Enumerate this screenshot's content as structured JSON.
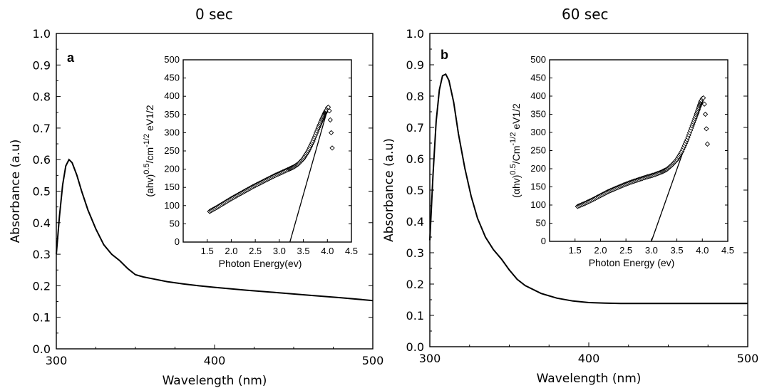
{
  "panels": [
    {
      "title": "0 sec",
      "letter": "a"
    },
    {
      "title": "60 sec",
      "letter": "b"
    }
  ],
  "chart_data": [
    {
      "type": "line",
      "panel": "a",
      "title": "0 sec",
      "xlabel": "Wavelength (nm)",
      "ylabel": "Absorbance (a.u)",
      "xlim": [
        300,
        500
      ],
      "ylim": [
        0.0,
        1.0
      ],
      "xticks": [
        300,
        400,
        500
      ],
      "yticks": [
        "0.0",
        "0.1",
        "0.2",
        "0.3",
        "0.4",
        "0.5",
        "0.6",
        "0.7",
        "0.8",
        "0.9",
        "1.0"
      ],
      "series": [
        {
          "x": [
            300,
            302,
            304,
            306,
            308,
            310,
            313,
            316,
            320,
            325,
            330,
            335,
            340,
            345,
            350,
            355,
            360,
            370,
            380,
            390,
            400,
            420,
            440,
            460,
            480,
            500
          ],
          "y": [
            0.3,
            0.42,
            0.52,
            0.58,
            0.6,
            0.59,
            0.55,
            0.5,
            0.44,
            0.38,
            0.33,
            0.3,
            0.28,
            0.255,
            0.235,
            0.228,
            0.223,
            0.213,
            0.206,
            0.2,
            0.195,
            0.186,
            0.178,
            0.17,
            0.162,
            0.153
          ]
        }
      ],
      "inset": {
        "type": "scatter",
        "xlabel": "Photon Energy(ev)",
        "ylabel_main": "(ahv)",
        "ylabel_sup1": "0.5",
        "ylabel_mid": "/cm",
        "ylabel_sup2": "-1/2",
        "ylabel_end": " eV1/2",
        "xlim": [
          1.0,
          4.5
        ],
        "ylim": [
          0,
          500
        ],
        "xticks": [
          "1.5",
          "2.0",
          "2.5",
          "3.0",
          "3.5",
          "4.0",
          "4.5"
        ],
        "yticks": [
          "0",
          "50",
          "100",
          "150",
          "200",
          "250",
          "300",
          "350",
          "400",
          "450",
          "500"
        ],
        "points": {
          "x": [
            1.55,
            1.7,
            1.85,
            2.0,
            2.15,
            2.3,
            2.45,
            2.6,
            2.75,
            2.9,
            3.05,
            3.2,
            3.3,
            3.4,
            3.5,
            3.6,
            3.7,
            3.8,
            3.88,
            3.94,
            3.98,
            4.0,
            4.02,
            4.04,
            4.06,
            4.08,
            4.1
          ],
          "y": [
            84,
            95,
            107,
            119,
            130,
            141,
            152,
            162,
            172,
            182,
            191,
            200,
            206,
            215,
            229,
            250,
            277,
            310,
            335,
            352,
            362,
            368,
            370,
            360,
            335,
            300,
            258
          ]
        },
        "fit_line": {
          "x": [
            3.22,
            4.02
          ],
          "y": [
            0,
            372
          ]
        }
      }
    },
    {
      "type": "line",
      "panel": "b",
      "title": "60 sec",
      "xlabel": "Wavelength (nm)",
      "ylabel": "Absorbance (a.u)",
      "xlim": [
        300,
        500
      ],
      "ylim": [
        0.0,
        1.0
      ],
      "xticks": [
        300,
        400,
        500
      ],
      "yticks": [
        "0.0",
        "0.1",
        "0.2",
        "0.3",
        "0.4",
        "0.5",
        "0.6",
        "0.7",
        "0.8",
        "0.9",
        "1.0"
      ],
      "series": [
        {
          "x": [
            300,
            302,
            304,
            306,
            308,
            310,
            312,
            315,
            318,
            322,
            326,
            330,
            335,
            340,
            345,
            350,
            355,
            360,
            370,
            380,
            390,
            400,
            410,
            420,
            440,
            460,
            480,
            500
          ],
          "y": [
            0.34,
            0.55,
            0.72,
            0.82,
            0.865,
            0.87,
            0.85,
            0.78,
            0.68,
            0.57,
            0.48,
            0.41,
            0.35,
            0.31,
            0.28,
            0.245,
            0.215,
            0.195,
            0.17,
            0.155,
            0.146,
            0.141,
            0.139,
            0.138,
            0.138,
            0.138,
            0.138,
            0.138
          ]
        }
      ],
      "inset": {
        "type": "scatter",
        "xlabel": "Photon Energy (ev)",
        "ylabel_main": "(αhv)",
        "ylabel_sup1": "0.5",
        "ylabel_mid": "/Cm",
        "ylabel_sup2": "-1/2",
        "ylabel_end": " eV1/2",
        "xlim": [
          1.0,
          4.5
        ],
        "ylim": [
          0,
          500
        ],
        "xticks": [
          "1.5",
          "2.0",
          "2.5",
          "3.0",
          "3.5",
          "4.0",
          "4.5"
        ],
        "yticks": [
          "0",
          "50",
          "100",
          "150",
          "200",
          "250",
          "300",
          "350",
          "400",
          "450",
          "500"
        ],
        "points": {
          "x": [
            1.55,
            1.7,
            1.85,
            2.0,
            2.15,
            2.3,
            2.45,
            2.6,
            2.75,
            2.9,
            3.05,
            3.2,
            3.3,
            3.4,
            3.5,
            3.6,
            3.7,
            3.8,
            3.88,
            3.94,
            3.98,
            4.0,
            4.02,
            4.04,
            4.06,
            4.08,
            4.1
          ],
          "y": [
            96,
            105,
            115,
            126,
            137,
            146,
            155,
            163,
            170,
            177,
            183,
            191,
            198,
            210,
            225,
            248,
            280,
            318,
            348,
            372,
            388,
            393,
            395,
            378,
            350,
            310,
            268
          ]
        },
        "fit_line": {
          "x": [
            3.0,
            3.97
          ],
          "y": [
            0,
            385
          ]
        }
      }
    }
  ]
}
